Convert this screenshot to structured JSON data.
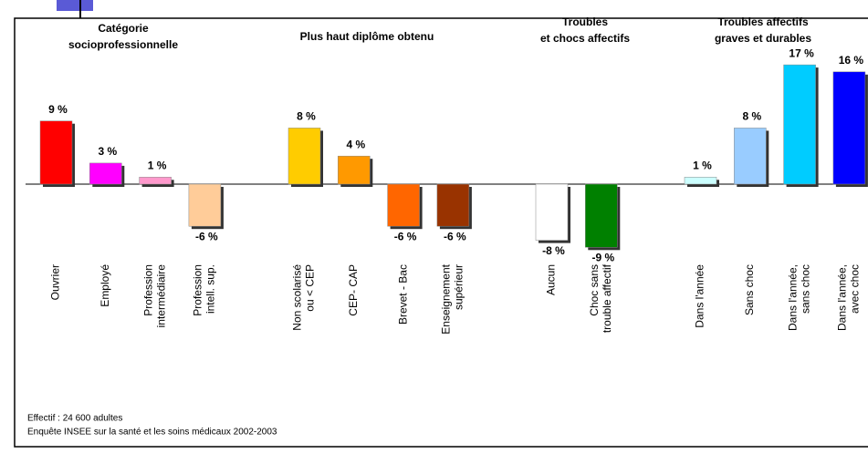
{
  "chart_data": {
    "type": "bar",
    "groups": [
      {
        "title": [
          "Catégorie",
          "socioprofessionnelle"
        ],
        "categories": [
          [
            "Ouvrier"
          ],
          [
            "Employé"
          ],
          [
            "Profession",
            "intermédiaire"
          ],
          [
            "Profession",
            "intell. sup."
          ]
        ],
        "values": [
          9,
          3,
          1,
          -6
        ],
        "value_labels": [
          "9 %",
          "3 %",
          "1 %",
          "-6 %"
        ],
        "colors": [
          "#ff0000",
          "#ff00ff",
          "#ff99cc",
          "#ffcc99"
        ]
      },
      {
        "title": [
          "Plus haut diplôme obtenu"
        ],
        "categories": [
          [
            "Non scolarisé",
            "ou < CEP"
          ],
          [
            "CEP- CAP"
          ],
          [
            "Brevet - Bac"
          ],
          [
            "Enseignement",
            "supérieur"
          ]
        ],
        "values": [
          8,
          4,
          -6,
          -6
        ],
        "value_labels": [
          "8 %",
          "4 %",
          "-6 %",
          "-6 %"
        ],
        "colors": [
          "#ffcc00",
          "#ff9900",
          "#ff6600",
          "#993300"
        ]
      },
      {
        "title": [
          "Troubles",
          "et chocs affectifs"
        ],
        "categories": [
          [
            "Aucun"
          ],
          [
            "Choc sans",
            "trouble affectif"
          ]
        ],
        "values": [
          -8,
          -9
        ],
        "value_labels": [
          "-8 %",
          "-9 %"
        ],
        "colors": [
          "#ffffff",
          "#008000"
        ]
      },
      {
        "title": [
          "Troubles affectifs",
          "graves et durables"
        ],
        "categories": [
          [
            "Dans l'année"
          ],
          [
            "Sans choc"
          ],
          [
            "Dans l'année,",
            "sans choc"
          ],
          [
            "Dans l'année,",
            "avec choc"
          ]
        ],
        "values": [
          1,
          8,
          17,
          16
        ],
        "value_labels": [
          "1 %",
          "8 %",
          "17 %",
          "16 %"
        ],
        "colors": [
          "#ccffff",
          "#99ccff",
          "#00ccff",
          "#0000ff"
        ]
      }
    ],
    "notes": [
      "Effectif : 24 600 adultes",
      "Enquête INSEE sur la santé et les soins médicaux 2002-2003"
    ]
  }
}
